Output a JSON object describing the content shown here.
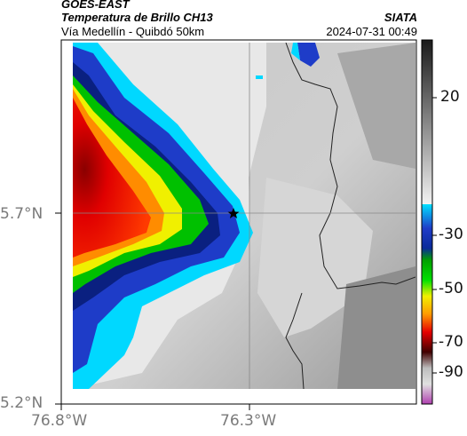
{
  "header": {
    "satellite": "GOES-EAST",
    "product": "Temperatura de Brillo CH13",
    "region": "Vía Medellín - Quibdó 50km",
    "organization": "SIATA",
    "timestamp": "2024-07-31 00:49"
  },
  "axes": {
    "lat_labels": [
      "5.7°N",
      "5.2°N"
    ],
    "lon_labels": [
      "76.8°W",
      "76.3°W"
    ]
  },
  "colorbar": {
    "ticks": [
      "20",
      "-30",
      "-50",
      "-70",
      "-90"
    ],
    "colors": {
      "warm_gray_top": "#2a2a2a",
      "warm_gray_bottom": "#f4f4f4",
      "cyan": "#00d8ff",
      "blue": "#1e3cc8",
      "dark_blue": "#0a1a78",
      "green": "#00c800",
      "yellow": "#f0f000",
      "orange": "#ff8c00",
      "red": "#e60000",
      "dark_red": "#5a0000",
      "magenta": "#c040c0"
    }
  },
  "map": {
    "marker": "star-icon",
    "colors": {
      "land_light": "#d8d8d8",
      "land_dark": "#8c8c8c",
      "frame": "#000000",
      "gridline": "#888888"
    }
  }
}
